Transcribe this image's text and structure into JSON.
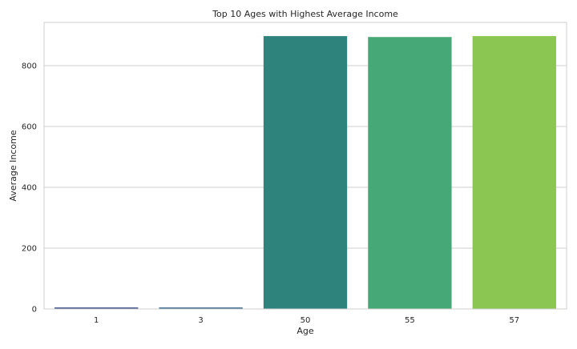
{
  "chart_data": {
    "type": "bar",
    "title": "Top 10 Ages with Highest Average Income",
    "xlabel": "Age",
    "ylabel": "Average Income",
    "categories": [
      "1",
      "3",
      "50",
      "55",
      "57"
    ],
    "values": [
      5,
      5,
      897,
      894,
      897
    ],
    "ylim": [
      0,
      942
    ],
    "yticks": [
      0,
      200,
      400,
      600,
      800
    ],
    "grid": true,
    "colors": [
      "#3d4e8a",
      "#3a6a8c",
      "#2e837c",
      "#46a777",
      "#8cc652"
    ]
  }
}
